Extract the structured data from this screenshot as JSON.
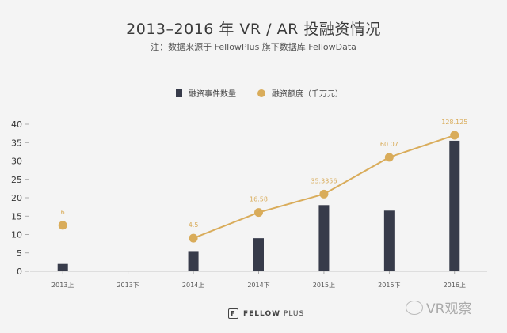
{
  "title": "2013–2016 年 VR / AR 投融资情况",
  "subtitle": "注：数据来源于 FellowPlus 旗下数据库 FellowData",
  "chart_data": {
    "type": "bar",
    "categories": [
      "2013上",
      "2013下",
      "2014上",
      "2014下",
      "2015上",
      "2015下",
      "2016上"
    ],
    "ylim": [
      0,
      40
    ],
    "yticks": [
      "0",
      "5",
      "10",
      "15",
      "20",
      "25",
      "30",
      "35",
      "40"
    ],
    "series": [
      {
        "name": "融资事件数量",
        "type": "bar",
        "color": "#373b4a",
        "values": [
          2,
          null,
          5.5,
          9,
          18,
          16.5,
          35.5
        ]
      },
      {
        "name": "融资额度（千万元）",
        "type": "line",
        "color": "#d9ac5a",
        "plot_values": [
          12.5,
          null,
          9,
          16,
          21,
          31,
          37
        ],
        "labels": [
          "6",
          null,
          "4.5",
          "16.58",
          "35.3356",
          "60.07",
          "128.125"
        ]
      }
    ],
    "legend_position": "top-center",
    "grid": false
  },
  "footer": {
    "brand_strong": "FELLOW",
    "brand_light": "PLUS",
    "logo_glyph": "F"
  },
  "watermark": {
    "text": "VR观察"
  }
}
